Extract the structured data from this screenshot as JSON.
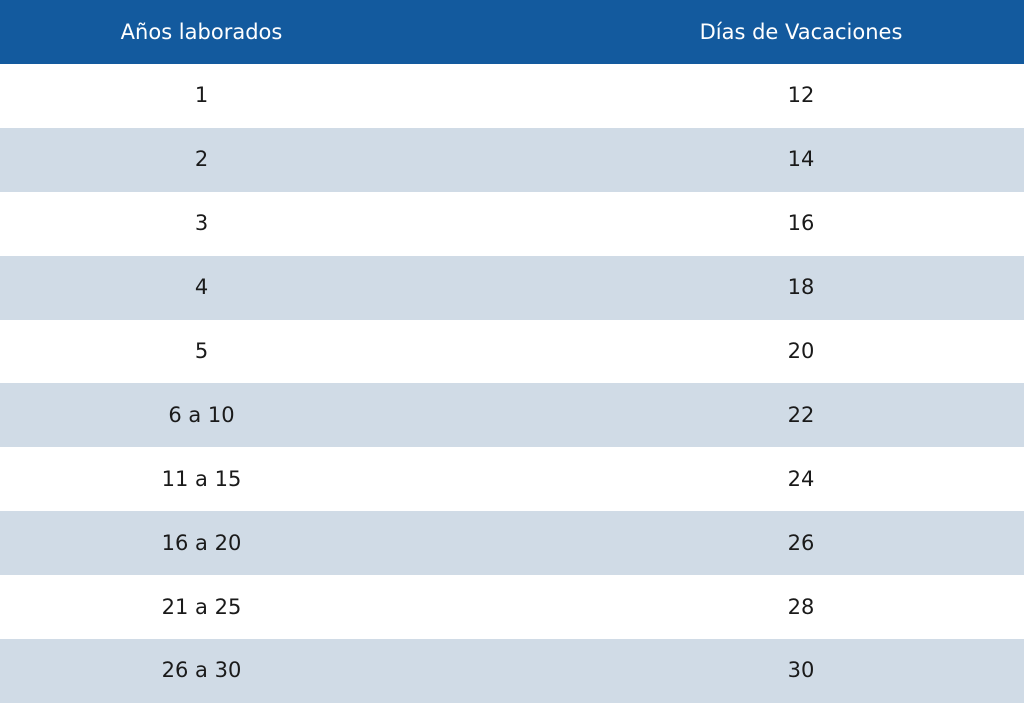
{
  "header": {
    "years_label": "Años laborados",
    "days_label": "Días de Vacaciones"
  },
  "rows": [
    {
      "years": "1",
      "days": "12"
    },
    {
      "years": "2",
      "days": "14"
    },
    {
      "years": "3",
      "days": "16"
    },
    {
      "years": "4",
      "days": "18"
    },
    {
      "years": "5",
      "days": "20"
    },
    {
      "years": "6 a 10",
      "days": "22"
    },
    {
      "years": "11 a 15",
      "days": "24"
    },
    {
      "years": "16 a 20",
      "days": "26"
    },
    {
      "years": "21 a 25",
      "days": "28"
    },
    {
      "years": "26 a 30",
      "days": "30"
    }
  ],
  "colors": {
    "header_bg": "#135a9e",
    "header_text": "#ffffff",
    "row_alt_bg": "#d0dbe6",
    "row_bg": "#ffffff"
  }
}
